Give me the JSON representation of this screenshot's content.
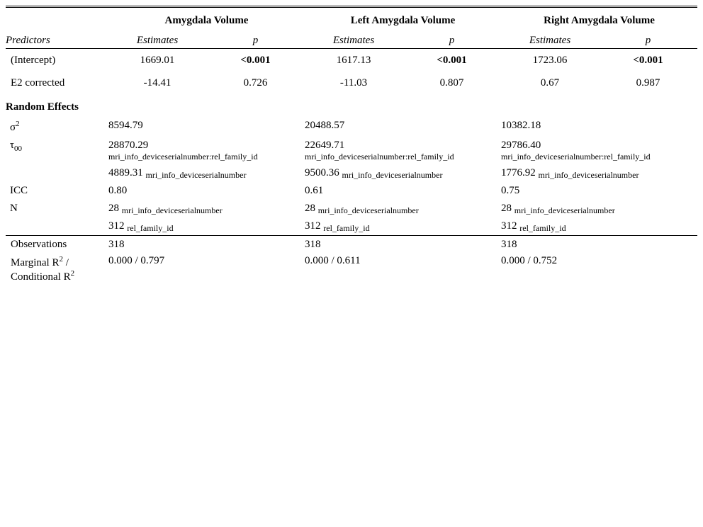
{
  "models": [
    "Amygdala Volume",
    "Left Amygdala Volume",
    "Right Amygdala Volume"
  ],
  "col_headers": {
    "predictors": "Predictors",
    "estimates": "Estimates",
    "p": "p"
  },
  "predictors": [
    {
      "label": "(Intercept)",
      "cells": [
        {
          "est": "1669.01",
          "p": "<0.001"
        },
        {
          "est": "1617.13",
          "p": "<0.001"
        },
        {
          "est": "1723.06",
          "p": "<0.001"
        }
      ]
    },
    {
      "label": "E2 corrected",
      "cells": [
        {
          "est": "-14.41",
          "p": "0.726"
        },
        {
          "est": "-11.03",
          "p": "0.807"
        },
        {
          "est": "0.67",
          "p": "0.987"
        }
      ]
    }
  ],
  "random_effects": {
    "header": "Random Effects",
    "sigma2": {
      "label_base": "σ",
      "label_sup": "2",
      "values": [
        "8594.79",
        "20488.57",
        "10382.18"
      ]
    },
    "tau00": {
      "label_base": "τ",
      "label_sub": "00",
      "line1": [
        {
          "value": "28870.29",
          "group": "mri_info_deviceserialnumber:rel_family_id"
        },
        {
          "value": "22649.71",
          "group": "mri_info_deviceserialnumber:rel_family_id"
        },
        {
          "value": "29786.40",
          "group": "mri_info_deviceserialnumber:rel_family_id"
        }
      ],
      "line2": [
        {
          "value": "4889.31",
          "group": "mri_info_deviceserialnumber"
        },
        {
          "value": "9500.36",
          "group": "mri_info_deviceserialnumber"
        },
        {
          "value": "1776.92",
          "group": "mri_info_deviceserialnumber"
        }
      ]
    },
    "icc": {
      "label": "ICC",
      "values": [
        "0.80",
        "0.61",
        "0.75"
      ]
    },
    "n": {
      "label": "N",
      "line1": [
        {
          "value": "28",
          "group": "mri_info_deviceserialnumber"
        },
        {
          "value": "28",
          "group": "mri_info_deviceserialnumber"
        },
        {
          "value": "28",
          "group": "mri_info_deviceserialnumber"
        }
      ],
      "line2": [
        {
          "value": "312",
          "group": "rel_family_id"
        },
        {
          "value": "312",
          "group": "rel_family_id"
        },
        {
          "value": "312",
          "group": "rel_family_id"
        }
      ]
    }
  },
  "summary": {
    "observations": {
      "label": "Observations",
      "values": [
        "318",
        "318",
        "318"
      ]
    },
    "r2": {
      "label_part1": "Marginal R",
      "label_sup1": "2",
      "label_part2": " /",
      "label_part3": "Conditional R",
      "label_sup2": "2",
      "values": [
        "0.000 / 0.797",
        "0.000 / 0.611",
        "0.000 / 0.752"
      ]
    }
  }
}
